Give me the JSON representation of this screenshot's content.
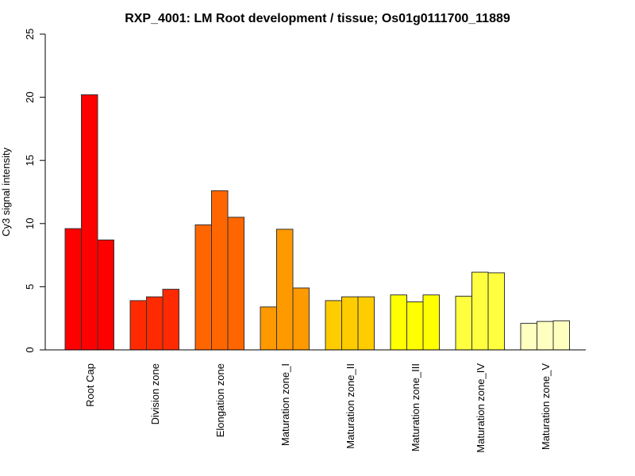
{
  "chart_data": {
    "type": "bar",
    "title": "RXP_4001: LM Root development / tissue; Os01g0111700_11889",
    "xlabel": "",
    "ylabel": "Cy3 signal intensity",
    "ylim": [
      0,
      25
    ],
    "yticks": [
      0,
      5,
      10,
      15,
      20,
      25
    ],
    "ytick_labels": [
      "0",
      "5",
      "10",
      "15",
      "20",
      "25"
    ],
    "grid": false,
    "legend": "none",
    "categories": [
      "Root Cap",
      "Division zone",
      "Elongation zone",
      "Maturation zone_I",
      "Maturation zone_II",
      "Maturation zone_III",
      "Maturation zone_IV",
      "Maturation zone_V"
    ],
    "replicates_per_category": 3,
    "values": [
      [
        9.6,
        20.2,
        8.7
      ],
      [
        3.9,
        4.2,
        4.8
      ],
      [
        9.9,
        12.6,
        10.5
      ],
      [
        3.4,
        9.55,
        4.9
      ],
      [
        3.9,
        4.2,
        4.2
      ],
      [
        4.35,
        3.8,
        4.35
      ],
      [
        4.25,
        6.15,
        6.1
      ],
      [
        2.1,
        2.25,
        2.3
      ]
    ],
    "colors": [
      "#FF0000",
      "#FF2A00",
      "#FF6600",
      "#FF9900",
      "#FFCC00",
      "#FFFF00",
      "#FFFF40",
      "#FFFFBF"
    ]
  }
}
